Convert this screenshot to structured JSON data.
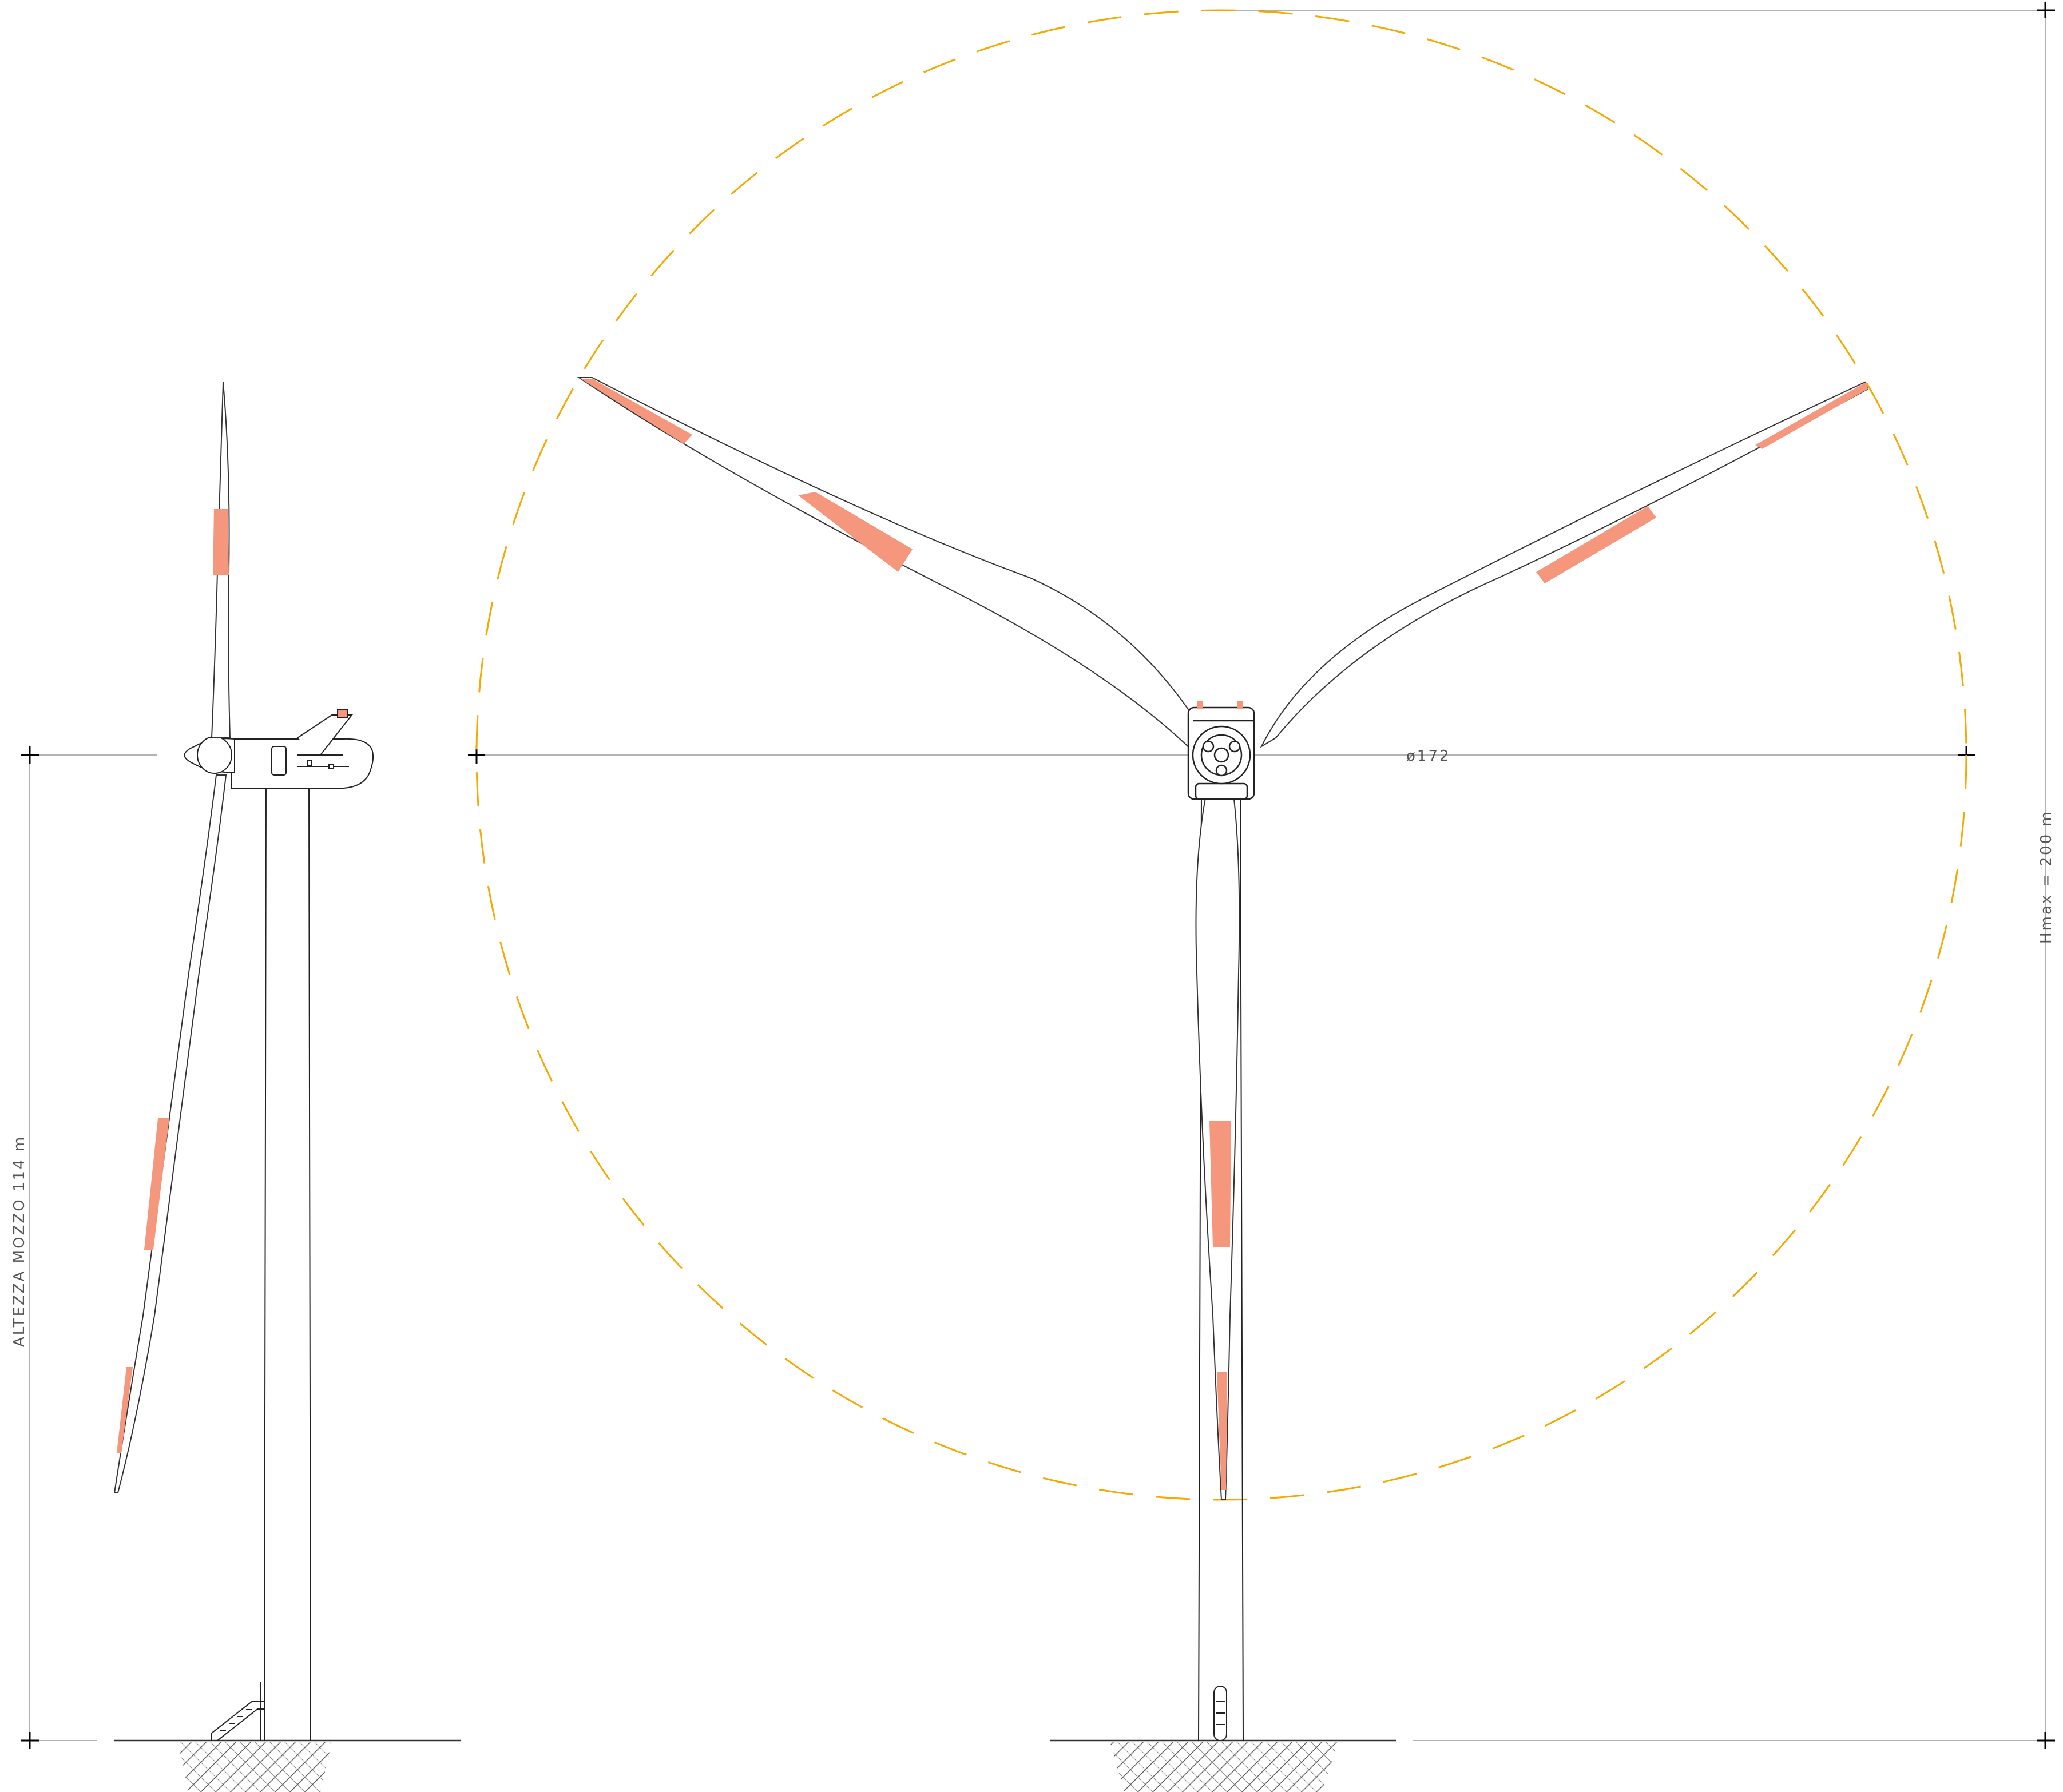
{
  "labels": {
    "hub_height": "ALTEZZA MOZZO 114 m",
    "rotor_diameter": "ø172",
    "max_height": "Hmax = 200 m"
  },
  "colors": {
    "rotor_circle": "#f5a800",
    "blade_band": "#f5977d",
    "line": "#222222",
    "dimension": "#9a9a9a"
  }
}
